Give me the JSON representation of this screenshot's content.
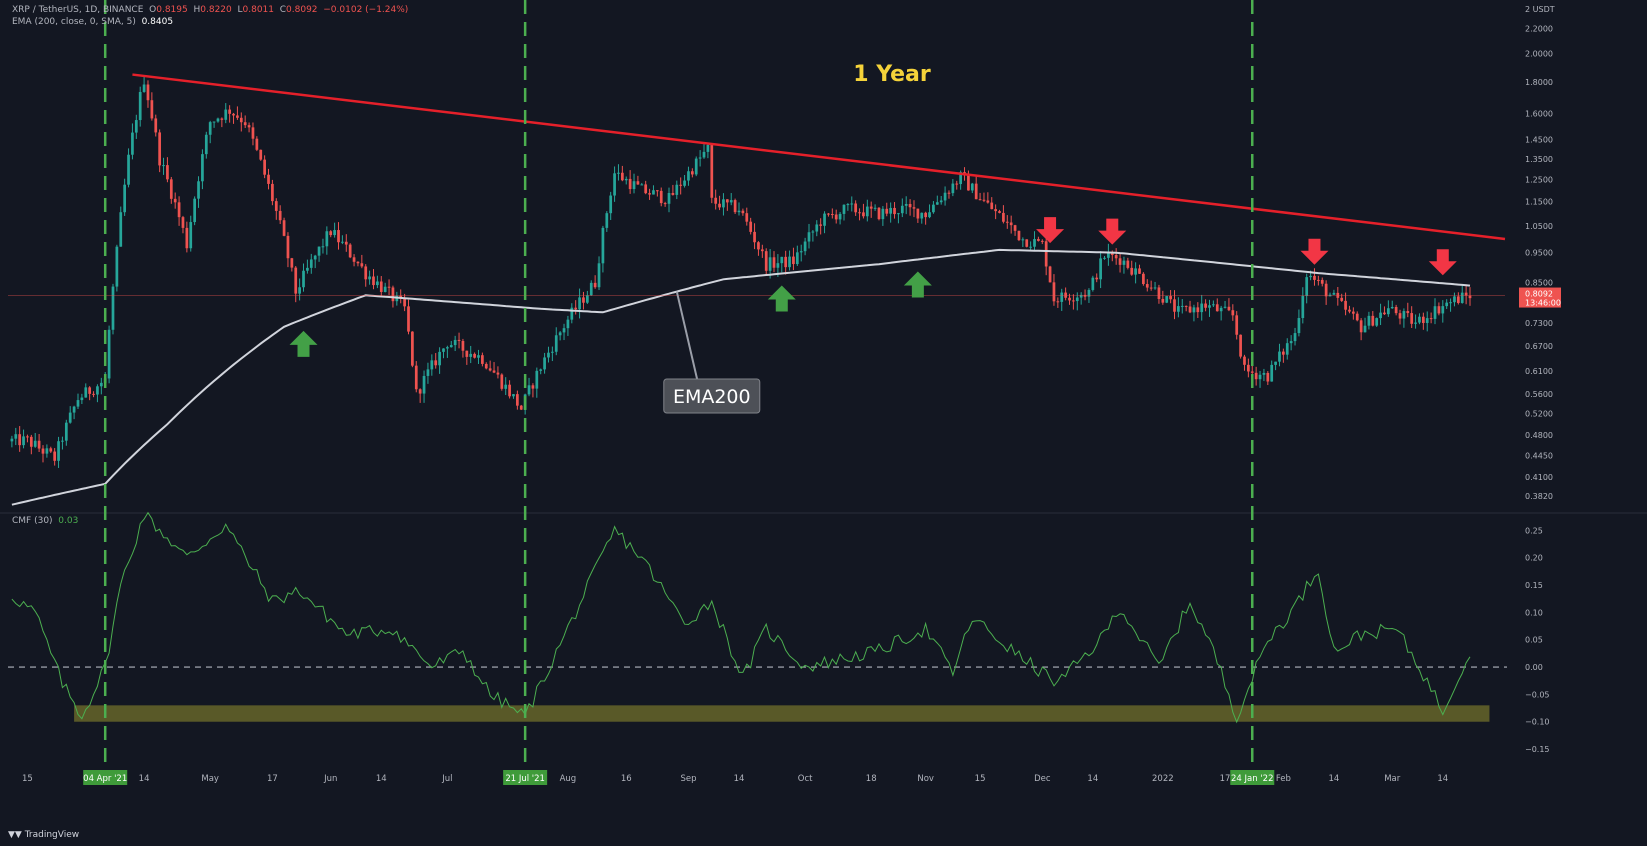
{
  "header": {
    "symbol": "XRP / TetherUS, 1D, BINANCE",
    "o_label": "O",
    "o_val": "0.8195",
    "h_label": "H",
    "h_val": "0.8220",
    "l_label": "L",
    "l_val": "0.8011",
    "c_label": "C",
    "c_val": "0.8092",
    "change": "−0.0102 (−1.24%)",
    "ema_label": "EMA (200, close, 0, SMA, 5)",
    "ema_val": "0.8405",
    "cmf_label": "CMF (30)",
    "cmf_val": "0.03"
  },
  "footer": {
    "logo": "TradingView"
  },
  "colors": {
    "background": "#131722",
    "up": "#26a69a",
    "down": "#ef5350",
    "trendline": "#e5202a",
    "ema": "#d1d4dc",
    "cmf_line": "#4caf50",
    "marker_green": "#43a047",
    "marker_red": "#f23645",
    "dashed_vertical": "#4caf50",
    "zone": "#6b6a2a"
  },
  "icons": {
    "up_marker": "up-arrow-icon",
    "down_marker": "down-arrow-icon",
    "logo": "tradingview-logo-icon"
  },
  "chart_data": [
    {
      "type": "candlestick",
      "title": "1 Year",
      "scale": "log",
      "ylim": [
        0.36,
        2.4
      ],
      "unit": "USDT",
      "currency_tick_label": "2 USDT",
      "y_ticks": [
        "2.2000",
        "2.0000",
        "1.8000",
        "1.6000",
        "1.4500",
        "1.3500",
        "1.2500",
        "1.1500",
        "1.0500",
        "0.9500",
        "0.8500",
        "0.7300",
        "0.6700",
        "0.6100",
        "0.5600",
        "0.5200",
        "0.4800",
        "0.4450",
        "0.4100",
        "0.3820"
      ],
      "last_price_label": "0.8092",
      "countdown_label": "13:46:00",
      "x_ticks": [
        "15",
        "04 Apr '21",
        "14",
        "May",
        "17",
        "Jun",
        "14",
        "Jul",
        "21 Jul '21",
        "Aug",
        "16",
        "Sep",
        "14",
        "Oct",
        "18",
        "Nov",
        "15",
        "Dec",
        "14",
        "2022",
        "17",
        "24 Jan '22",
        "Feb",
        "14",
        "Mar",
        "14"
      ],
      "highlighted_x_ticks": [
        "04 Apr '21",
        "21 Jul '21",
        "24 Jan '22"
      ],
      "price_anchors": [
        {
          "date": "2021-03-15",
          "close": 0.47
        },
        {
          "date": "2021-03-22",
          "close": 0.44
        },
        {
          "date": "2021-03-28",
          "close": 0.55
        },
        {
          "date": "2021-04-04",
          "close": 0.59
        },
        {
          "date": "2021-04-07",
          "close": 0.95
        },
        {
          "date": "2021-04-10",
          "close": 1.35
        },
        {
          "date": "2021-04-14",
          "close": 1.82
        },
        {
          "date": "2021-04-18",
          "close": 1.35
        },
        {
          "date": "2021-04-25",
          "close": 0.98
        },
        {
          "date": "2021-05-01",
          "close": 1.55
        },
        {
          "date": "2021-05-06",
          "close": 1.62
        },
        {
          "date": "2021-05-10",
          "close": 1.55
        },
        {
          "date": "2021-05-19",
          "close": 1.05
        },
        {
          "date": "2021-05-23",
          "close": 0.82
        },
        {
          "date": "2021-06-01",
          "close": 1.03
        },
        {
          "date": "2021-06-10",
          "close": 0.88
        },
        {
          "date": "2021-06-20",
          "close": 0.77
        },
        {
          "date": "2021-06-23",
          "close": 0.56
        },
        {
          "date": "2021-07-01",
          "close": 0.68
        },
        {
          "date": "2021-07-10",
          "close": 0.64
        },
        {
          "date": "2021-07-20",
          "close": 0.53
        },
        {
          "date": "2021-07-25",
          "close": 0.62
        },
        {
          "date": "2021-08-01",
          "close": 0.74
        },
        {
          "date": "2021-08-08",
          "close": 0.85
        },
        {
          "date": "2021-08-13",
          "close": 1.28
        },
        {
          "date": "2021-08-20",
          "close": 1.2
        },
        {
          "date": "2021-08-27",
          "close": 1.16
        },
        {
          "date": "2021-09-06",
          "close": 1.4
        },
        {
          "date": "2021-09-07",
          "close": 1.15
        },
        {
          "date": "2021-09-14",
          "close": 1.12
        },
        {
          "date": "2021-09-21",
          "close": 0.91
        },
        {
          "date": "2021-09-28",
          "close": 0.92
        },
        {
          "date": "2021-10-05",
          "close": 1.07
        },
        {
          "date": "2021-10-12",
          "close": 1.12
        },
        {
          "date": "2021-10-20",
          "close": 1.1
        },
        {
          "date": "2021-10-26",
          "close": 1.12
        },
        {
          "date": "2021-11-01",
          "close": 1.1
        },
        {
          "date": "2021-11-10",
          "close": 1.26
        },
        {
          "date": "2021-11-16",
          "close": 1.15
        },
        {
          "date": "2021-11-26",
          "close": 1.0
        },
        {
          "date": "2021-12-01",
          "close": 0.98
        },
        {
          "date": "2021-12-04",
          "close": 0.8
        },
        {
          "date": "2021-12-13",
          "close": 0.82
        },
        {
          "date": "2021-12-17",
          "close": 0.94
        },
        {
          "date": "2021-12-21",
          "close": 0.93
        },
        {
          "date": "2021-12-28",
          "close": 0.85
        },
        {
          "date": "2022-01-05",
          "close": 0.76
        },
        {
          "date": "2022-01-12",
          "close": 0.78
        },
        {
          "date": "2022-01-19",
          "close": 0.75
        },
        {
          "date": "2022-01-22",
          "close": 0.61
        },
        {
          "date": "2022-01-28",
          "close": 0.6
        },
        {
          "date": "2022-02-04",
          "close": 0.7
        },
        {
          "date": "2022-02-07",
          "close": 0.88
        },
        {
          "date": "2022-02-14",
          "close": 0.8
        },
        {
          "date": "2022-02-21",
          "close": 0.72
        },
        {
          "date": "2022-02-28",
          "close": 0.77
        },
        {
          "date": "2022-03-07",
          "close": 0.73
        },
        {
          "date": "2022-03-14",
          "close": 0.78
        },
        {
          "date": "2022-03-18",
          "close": 0.8
        },
        {
          "date": "2022-03-21",
          "close": 0.81
        }
      ],
      "ema200_anchors": [
        {
          "date": "2021-03-11",
          "value": 0.37
        },
        {
          "date": "2021-04-04",
          "value": 0.4
        },
        {
          "date": "2021-04-20",
          "value": 0.5
        },
        {
          "date": "2021-05-20",
          "value": 0.72
        },
        {
          "date": "2021-06-10",
          "value": 0.81
        },
        {
          "date": "2021-07-25",
          "value": 0.77
        },
        {
          "date": "2021-08-10",
          "value": 0.76
        },
        {
          "date": "2021-09-10",
          "value": 0.86
        },
        {
          "date": "2021-10-20",
          "value": 0.91
        },
        {
          "date": "2021-11-20",
          "value": 0.96
        },
        {
          "date": "2021-12-20",
          "value": 0.95
        },
        {
          "date": "2022-02-10",
          "value": 0.88
        },
        {
          "date": "2022-03-21",
          "value": 0.84
        }
      ],
      "trendline": {
        "from": {
          "date": "2021-04-11",
          "value": 1.85
        },
        "to": {
          "date": "2022-03-30",
          "value": 1.0
        }
      },
      "dashed_verticals": [
        "2021-04-04",
        "2021-07-21",
        "2022-01-24"
      ],
      "ema_callout": "EMA200",
      "support_markers": [
        "2021-05-25",
        "2021-09-25",
        "2021-10-30"
      ],
      "resistance_markers": [
        "2021-12-03",
        "2021-12-19",
        "2022-02-09",
        "2022-03-14"
      ]
    },
    {
      "type": "line",
      "name": "CMF (30)",
      "ylim": [
        -0.17,
        0.28
      ],
      "y_ticks": [
        "0.25",
        "0.20",
        "0.15",
        "0.10",
        "0.05",
        "0.00",
        "−0.05",
        "−0.10",
        "−0.15"
      ],
      "zero_line": 0,
      "zone": [
        -0.1,
        -0.07
      ],
      "anchors": [
        {
          "date": "2021-03-11",
          "value": 0.13
        },
        {
          "date": "2021-03-17",
          "value": 0.1
        },
        {
          "date": "2021-03-24",
          "value": -0.03
        },
        {
          "date": "2021-03-29",
          "value": -0.09
        },
        {
          "date": "2021-04-04",
          "value": 0.0
        },
        {
          "date": "2021-04-08",
          "value": 0.15
        },
        {
          "date": "2021-04-14",
          "value": 0.28
        },
        {
          "date": "2021-04-25",
          "value": 0.2
        },
        {
          "date": "2021-05-05",
          "value": 0.26
        },
        {
          "date": "2021-05-17",
          "value": 0.12
        },
        {
          "date": "2021-05-24",
          "value": 0.14
        },
        {
          "date": "2021-06-05",
          "value": 0.06
        },
        {
          "date": "2021-06-17",
          "value": 0.07
        },
        {
          "date": "2021-06-27",
          "value": 0.0
        },
        {
          "date": "2021-07-05",
          "value": 0.03
        },
        {
          "date": "2021-07-12",
          "value": -0.05
        },
        {
          "date": "2021-07-21",
          "value": -0.09
        },
        {
          "date": "2021-08-01",
          "value": 0.07
        },
        {
          "date": "2021-08-13",
          "value": 0.25
        },
        {
          "date": "2021-08-20",
          "value": 0.2
        },
        {
          "date": "2021-08-31",
          "value": 0.08
        },
        {
          "date": "2021-09-07",
          "value": 0.12
        },
        {
          "date": "2021-09-15",
          "value": -0.02
        },
        {
          "date": "2021-09-21",
          "value": 0.07
        },
        {
          "date": "2021-10-01",
          "value": 0.0
        },
        {
          "date": "2021-10-20",
          "value": 0.03
        },
        {
          "date": "2021-11-01",
          "value": 0.07
        },
        {
          "date": "2021-11-08",
          "value": -0.01
        },
        {
          "date": "2021-11-13",
          "value": 0.09
        },
        {
          "date": "2021-11-25",
          "value": 0.02
        },
        {
          "date": "2021-12-05",
          "value": -0.03
        },
        {
          "date": "2021-12-16",
          "value": 0.05
        },
        {
          "date": "2021-12-21",
          "value": 0.11
        },
        {
          "date": "2021-12-31",
          "value": 0.0
        },
        {
          "date": "2022-01-08",
          "value": 0.12
        },
        {
          "date": "2022-01-14",
          "value": 0.03
        },
        {
          "date": "2022-01-20",
          "value": -0.09
        },
        {
          "date": "2022-01-28",
          "value": 0.05
        },
        {
          "date": "2022-02-03",
          "value": 0.1
        },
        {
          "date": "2022-02-10",
          "value": 0.18
        },
        {
          "date": "2022-02-14",
          "value": 0.03
        },
        {
          "date": "2022-02-21",
          "value": 0.06
        },
        {
          "date": "2022-03-02",
          "value": 0.07
        },
        {
          "date": "2022-03-08",
          "value": 0.0
        },
        {
          "date": "2022-03-14",
          "value": -0.08
        },
        {
          "date": "2022-03-21",
          "value": 0.03
        }
      ]
    }
  ]
}
